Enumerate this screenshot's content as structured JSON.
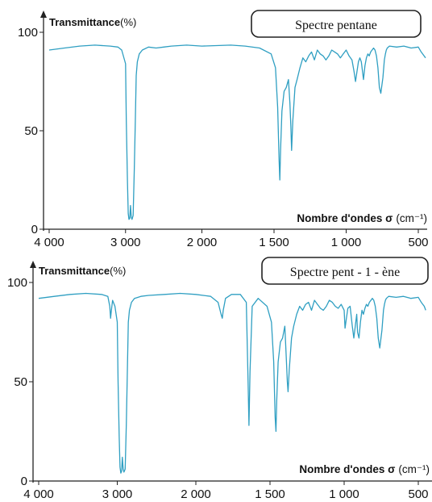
{
  "chart_data": [
    {
      "type": "line",
      "title": "Spectre pentane",
      "ylabel": "Transmittance",
      "ylabel_unit": "(%)",
      "xlabel": "Nombre d'ondes σ",
      "xlabel_unit": "(cm⁻¹)",
      "xlim": [
        4000,
        450
      ],
      "ylim": [
        0,
        100
      ],
      "x_ticks": [
        {
          "value": 4000,
          "label": "4 000"
        },
        {
          "value": 3000,
          "label": "3 000"
        },
        {
          "value": 2000,
          "label": "2 000"
        },
        {
          "value": 1500,
          "label": "1 500"
        },
        {
          "value": 1000,
          "label": "1 000"
        },
        {
          "value": 500,
          "label": "500"
        }
      ],
      "y_ticks": [
        {
          "value": 0,
          "label": "0"
        },
        {
          "value": 50,
          "label": "50"
        },
        {
          "value": 100,
          "label": "100"
        }
      ],
      "series": [
        {
          "color": "#2f9fc2",
          "x": [
            4000,
            3800,
            3600,
            3400,
            3200,
            3100,
            3050,
            3000,
            2990,
            2975,
            2965,
            2955,
            2945,
            2935,
            2925,
            2915,
            2900,
            2885,
            2872,
            2860,
            2845,
            2820,
            2780,
            2700,
            2600,
            2500,
            2400,
            2200,
            2000,
            1800,
            1700,
            1600,
            1520,
            1490,
            1475,
            1465,
            1460,
            1455,
            1445,
            1430,
            1415,
            1400,
            1390,
            1383,
            1378,
            1370,
            1355,
            1340,
            1320,
            1300,
            1280,
            1260,
            1240,
            1220,
            1200,
            1180,
            1160,
            1140,
            1120,
            1100,
            1080,
            1060,
            1040,
            1020,
            1000,
            980,
            960,
            945,
            935,
            925,
            915,
            905,
            895,
            880,
            870,
            860,
            850,
            840,
            830,
            810,
            800,
            790,
            780,
            770,
            760,
            745,
            735,
            728,
            722,
            715,
            700,
            650,
            600,
            550,
            500,
            480,
            460,
            450
          ],
          "y": [
            91,
            92,
            93,
            93.5,
            93,
            92.5,
            91,
            84,
            55,
            25,
            8,
            5,
            5.5,
            12,
            6,
            5,
            7,
            30,
            55,
            78,
            85,
            89,
            91,
            92.5,
            92,
            92.5,
            93,
            93.5,
            93,
            93.5,
            93,
            92,
            89,
            82,
            62,
            35,
            25,
            40,
            60,
            70,
            72,
            76,
            64,
            52,
            40,
            55,
            72,
            76,
            82,
            87,
            85,
            88,
            90,
            86,
            91,
            89,
            88,
            86,
            88,
            91,
            90,
            89,
            87,
            89,
            91,
            88,
            86,
            80,
            75,
            80,
            85,
            87,
            85,
            76,
            83,
            87,
            89,
            88,
            90,
            92,
            91,
            88,
            82,
            72,
            69,
            77,
            86,
            89,
            91,
            92,
            93,
            92.5,
            93,
            92,
            92.5,
            90,
            88,
            87
          ]
        }
      ]
    },
    {
      "type": "line",
      "title": "Spectre pent - 1 - ène",
      "ylabel": "Transmittance",
      "ylabel_unit": "(%)",
      "xlabel": "Nombre d'ondes σ",
      "xlabel_unit": "(cm⁻¹)",
      "xlim": [
        4000,
        450
      ],
      "ylim": [
        0,
        100
      ],
      "x_ticks": [
        {
          "value": 4000,
          "label": "4 000"
        },
        {
          "value": 3000,
          "label": "3 000"
        },
        {
          "value": 2000,
          "label": "2 000"
        },
        {
          "value": 1500,
          "label": "1 500"
        },
        {
          "value": 1000,
          "label": "1 000"
        },
        {
          "value": 500,
          "label": "500"
        }
      ],
      "y_ticks": [
        {
          "value": 0,
          "label": "0"
        },
        {
          "value": 50,
          "label": "50"
        },
        {
          "value": 100,
          "label": "100"
        }
      ],
      "series": [
        {
          "color": "#2f9fc2",
          "x": [
            4000,
            3800,
            3600,
            3400,
            3200,
            3120,
            3095,
            3085,
            3075,
            3060,
            3030,
            3000,
            2990,
            2975,
            2965,
            2955,
            2945,
            2935,
            2925,
            2915,
            2900,
            2885,
            2872,
            2860,
            2845,
            2820,
            2780,
            2700,
            2600,
            2400,
            2200,
            2000,
            1900,
            1850,
            1830,
            1822,
            1815,
            1800,
            1760,
            1700,
            1660,
            1648,
            1642,
            1635,
            1620,
            1580,
            1520,
            1490,
            1475,
            1465,
            1460,
            1455,
            1445,
            1430,
            1415,
            1400,
            1390,
            1383,
            1378,
            1370,
            1355,
            1340,
            1320,
            1300,
            1280,
            1260,
            1240,
            1220,
            1200,
            1180,
            1160,
            1140,
            1120,
            1100,
            1080,
            1060,
            1040,
            1020,
            1000,
            994,
            985,
            975,
            960,
            945,
            935,
            925,
            915,
            910,
            900,
            890,
            880,
            870,
            860,
            850,
            840,
            830,
            810,
            800,
            790,
            780,
            770,
            760,
            745,
            735,
            728,
            722,
            715,
            700,
            650,
            600,
            550,
            500,
            480,
            460,
            450
          ],
          "y": [
            92,
            93,
            94,
            94.5,
            94,
            93,
            88,
            82,
            86,
            91,
            88,
            80,
            50,
            22,
            7,
            4,
            5,
            12,
            6,
            4.5,
            6,
            28,
            55,
            80,
            86,
            90,
            92,
            93,
            93.5,
            94,
            94.5,
            94,
            93,
            90,
            84,
            82,
            86,
            92,
            94,
            94,
            90,
            50,
            28,
            55,
            88,
            92,
            88,
            80,
            60,
            32,
            25,
            40,
            60,
            70,
            72,
            78,
            62,
            50,
            45,
            56,
            72,
            78,
            84,
            88,
            86,
            89,
            90,
            86,
            91,
            89,
            87,
            86,
            88,
            91,
            90,
            88,
            87,
            89,
            86,
            77,
            82,
            87,
            88,
            78,
            72,
            78,
            84,
            75,
            72,
            80,
            86,
            84,
            87,
            89,
            88,
            90,
            92,
            91,
            88,
            82,
            72,
            67,
            76,
            86,
            89,
            91,
            92,
            93,
            92.5,
            93,
            92,
            92.5,
            90,
            88,
            86
          ]
        }
      ]
    }
  ]
}
